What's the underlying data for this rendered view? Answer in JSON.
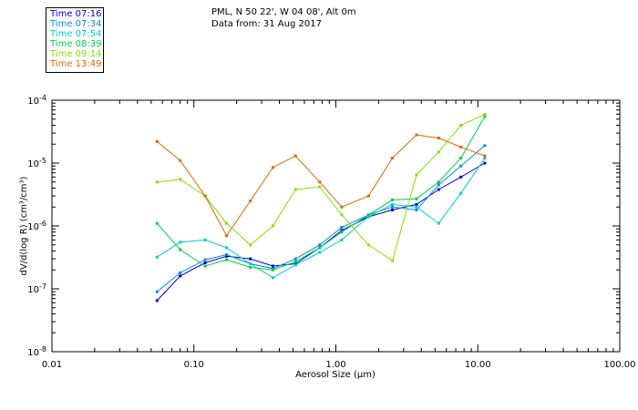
{
  "header": {
    "line1": "PML, N 50 22', W 04 08', Alt 0m",
    "line2": "Data from: 31 Aug 2017"
  },
  "chart_data": {
    "type": "line",
    "x_scale": "log",
    "y_scale": "log",
    "xlim": [
      0.01,
      100
    ],
    "ylim": [
      1e-08,
      0.0001
    ],
    "xlabel": "Aerosol Size (μm)",
    "ylabel": "dV/d(log R) (cm³/cm³)",
    "x_ticks": [
      0.01,
      0.1,
      1,
      10,
      100
    ],
    "x_tick_labels": [
      "0.01",
      "0.10",
      "1.00",
      "10.00",
      "100.00"
    ],
    "y_ticks": [
      1e-08,
      1e-07,
      1e-06,
      1e-05,
      0.0001
    ],
    "y_tick_labels": [
      {
        "base": "10",
        "exp": "-8"
      },
      {
        "base": "10",
        "exp": "-7"
      },
      {
        "base": "10",
        "exp": "-6"
      },
      {
        "base": "10",
        "exp": "-5"
      },
      {
        "base": "10",
        "exp": "-4"
      }
    ],
    "grid": false,
    "legend_position": "top-left",
    "x": [
      0.055,
      0.08,
      0.12,
      0.17,
      0.25,
      0.36,
      0.52,
      0.77,
      1.1,
      1.7,
      2.5,
      3.7,
      5.3,
      7.6,
      11.2
    ],
    "series": [
      {
        "name": "Time 07:16",
        "color": "#0000cc",
        "values": [
          6.5e-08,
          1.6e-07,
          2.6e-07,
          3.3e-07,
          3e-07,
          2.3e-07,
          2.5e-07,
          4.5e-07,
          8.5e-07,
          1.4e-06,
          1.8e-06,
          2.2e-06,
          3.8e-06,
          6e-06,
          1e-05
        ]
      },
      {
        "name": "Time 07:34",
        "color": "#0088ee",
        "values": [
          9e-08,
          1.8e-07,
          2.9e-07,
          3.5e-07,
          2.5e-07,
          2.1e-07,
          3e-07,
          5e-07,
          9.5e-07,
          1.5e-06,
          2e-06,
          1.8e-06,
          4.5e-06,
          9e-06,
          1.9e-05
        ]
      },
      {
        "name": "Time 07:54",
        "color": "#00cccc",
        "values": [
          3.2e-07,
          5.5e-07,
          6e-07,
          4.5e-07,
          2.5e-07,
          1.5e-07,
          2.4e-07,
          3.8e-07,
          6e-07,
          1.4e-06,
          2.2e-06,
          2e-06,
          1.1e-06,
          3.3e-06,
          1.2e-05
        ]
      },
      {
        "name": "Time 08:39",
        "color": "#00cc44",
        "values": [
          1.1e-06,
          4.2e-07,
          2.3e-07,
          2.9e-07,
          2.2e-07,
          2e-07,
          2.7e-07,
          4.5e-07,
          8e-07,
          1.5e-06,
          2.6e-06,
          2.7e-06,
          5e-06,
          1.2e-05,
          5.5e-05
        ]
      },
      {
        "name": "Time 09:14",
        "color": "#88dd00",
        "values": [
          5e-06,
          5.5e-06,
          3e-06,
          1.1e-06,
          5e-07,
          1e-06,
          3.8e-06,
          4.2e-06,
          1.5e-06,
          5e-07,
          2.8e-07,
          6.5e-06,
          1.5e-05,
          4e-05,
          6e-05
        ]
      },
      {
        "name": "Time 13:49",
        "color": "#dd6600",
        "values": [
          2.2e-05,
          1.1e-05,
          3e-06,
          7e-07,
          2.5e-06,
          8.5e-06,
          1.3e-05,
          5e-06,
          2e-06,
          3e-06,
          1.2e-05,
          2.8e-05,
          2.5e-05,
          1.8e-05,
          1.3e-05
        ]
      }
    ]
  }
}
